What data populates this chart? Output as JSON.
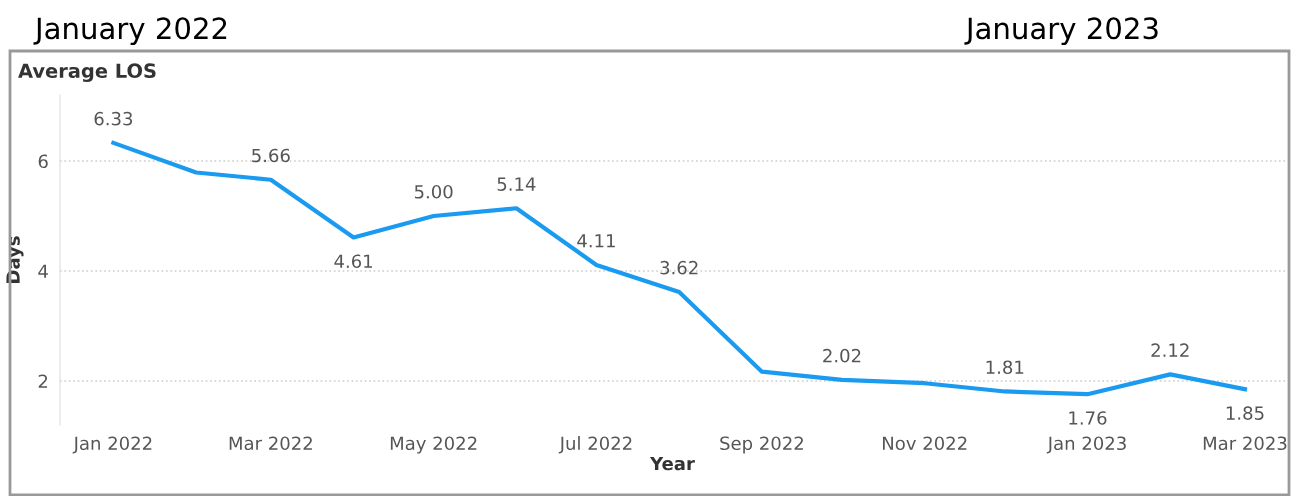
{
  "chart_data": {
    "type": "line",
    "title": "Average LOS",
    "xlabel": "Year",
    "ylabel": "Days",
    "annotations": [
      "January 2022",
      "January 2023"
    ],
    "x": [
      "2022-01",
      "2022-02",
      "2022-03",
      "2022-04",
      "2022-05",
      "2022-06",
      "2022-07",
      "2022-08",
      "2022-09",
      "2022-10",
      "2022-11",
      "2022-12",
      "2023-01",
      "2023-02",
      "2023-03"
    ],
    "series": [
      {
        "color": "#1a9bf0",
        "values": [
          6.33,
          5.79,
          5.66,
          4.61,
          5.0,
          5.14,
          4.11,
          3.62,
          2.17,
          2.02,
          1.96,
          1.81,
          1.76,
          2.12,
          1.85
        ],
        "value_labels": [
          "6.33",
          null,
          "5.66",
          "4.61",
          "5.00",
          "5.14",
          "4.11",
          "3.62",
          null,
          "2.02",
          null,
          "1.81",
          "1.76",
          "2.12",
          "1.85"
        ]
      }
    ],
    "xlim": [
      "2021-12-12",
      "2023-03-16"
    ],
    "xticks": [
      {
        "value": "2022-01",
        "label": "Jan 2022"
      },
      {
        "value": "2022-03",
        "label": "Mar 2022"
      },
      {
        "value": "2022-05",
        "label": "May 2022"
      },
      {
        "value": "2022-07",
        "label": "Jul 2022"
      },
      {
        "value": "2022-09",
        "label": "Sep 2022"
      },
      {
        "value": "2022-11",
        "label": "Nov 2022"
      },
      {
        "value": "2023-01",
        "label": "Jan 2023"
      },
      {
        "value": "2023-03",
        "label": "Mar 2023"
      }
    ],
    "ylim": [
      1.2,
      7.2
    ],
    "yticks": [
      2,
      4,
      6
    ],
    "grid": "y",
    "legend": false,
    "marker": "none",
    "line_style": "solid"
  }
}
